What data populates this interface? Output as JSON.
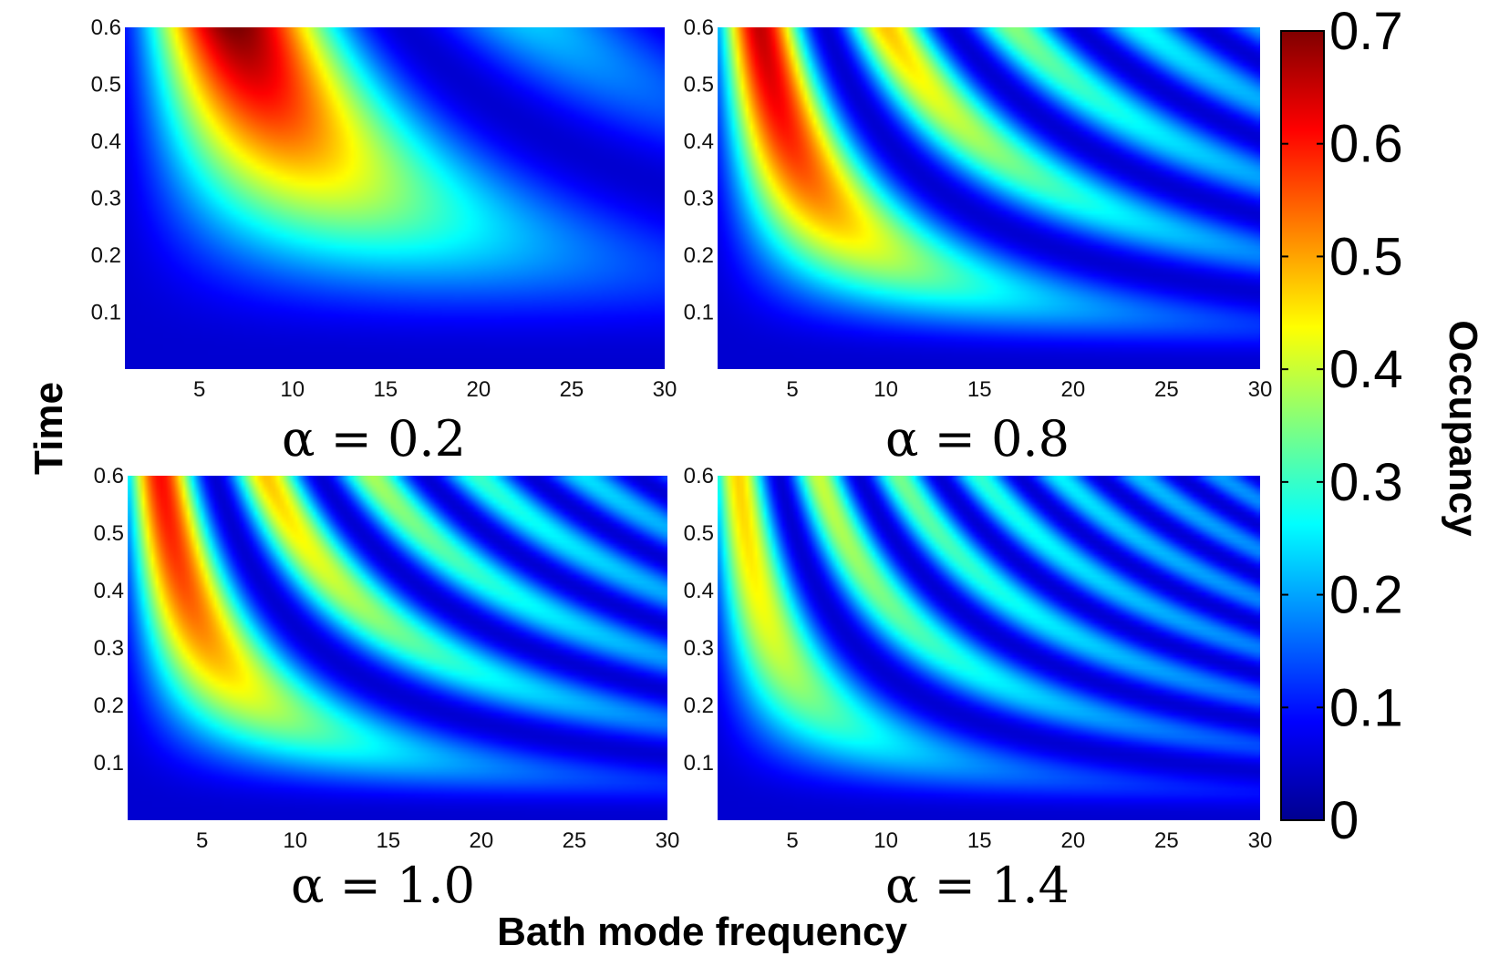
{
  "chart_data": {
    "type": "heatmap",
    "xlabel": "Bath mode frequency",
    "ylabel": "Time",
    "xlim": [
      1,
      30
    ],
    "ylim": [
      0,
      0.6
    ],
    "xticks": [
      "5",
      "10",
      "15",
      "20",
      "25",
      "30"
    ],
    "yticks": [
      "0.1",
      "0.2",
      "0.3",
      "0.4",
      "0.5",
      "0.6"
    ],
    "colorbar": {
      "label": "Occupancy",
      "min": 0,
      "max": 0.7,
      "ticks": [
        "0",
        "0.1",
        "0.2",
        "0.3",
        "0.4",
        "0.5",
        "0.6",
        "0.7"
      ],
      "colormap": "jet"
    },
    "panels": [
      {
        "label": "α = 0.2",
        "alpha": 0.2,
        "peak": {
          "frequency": 9,
          "time": 0.6,
          "occupancy": 0.7
        }
      },
      {
        "label": "α = 0.8",
        "alpha": 0.8,
        "peak": {
          "frequency": 3,
          "time": 0.55,
          "occupancy": 0.65
        }
      },
      {
        "label": "α = 1.0",
        "alpha": 1.0,
        "peak": {
          "frequency": 2,
          "time": 0.55,
          "occupancy": 0.6
        }
      },
      {
        "label": "α = 1.4",
        "alpha": 1.4,
        "peak": {
          "frequency": 3,
          "time": 0.4,
          "occupancy": 0.45
        }
      }
    ]
  }
}
